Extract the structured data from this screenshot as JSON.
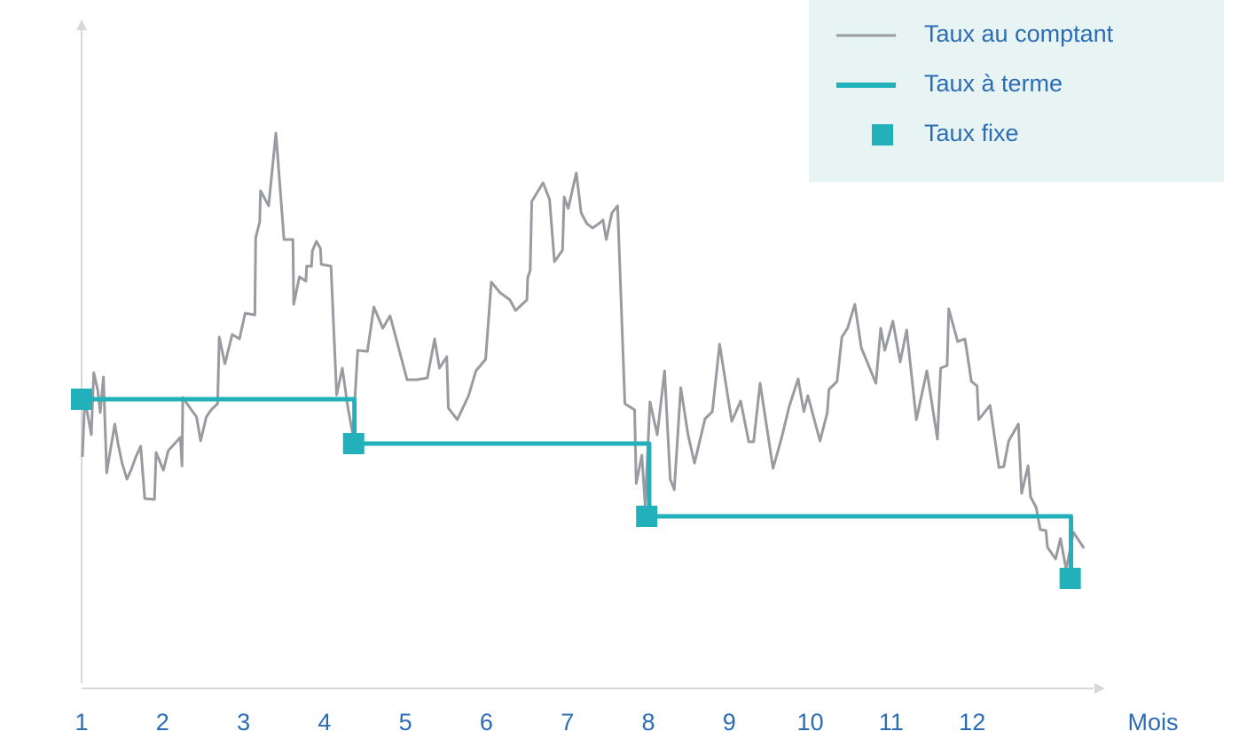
{
  "chart_data": {
    "type": "line",
    "xlabel": "Mois",
    "xlim": [
      1,
      13.63
    ],
    "xticks": [
      1,
      2,
      3,
      4,
      5,
      6,
      7,
      8,
      9,
      10,
      11,
      12
    ],
    "ylim": [
      0,
      74
    ],
    "legend": "top-right",
    "series": [
      {
        "name": "Taux au comptant",
        "color": "#9a9ba1",
        "mode": "lines",
        "x": [
          1.01,
          1.04,
          1.09,
          1.12,
          1.15,
          1.2,
          1.23,
          1.27,
          1.31,
          1.36,
          1.41,
          1.45,
          1.5,
          1.56,
          1.61,
          1.67,
          1.73,
          1.78,
          1.9,
          1.92,
          2.01,
          2.07,
          2.15,
          2.22,
          2.24,
          2.25,
          2.34,
          2.42,
          2.47,
          2.54,
          2.6,
          2.68,
          2.7,
          2.77,
          2.86,
          2.95,
          3.02,
          3.14,
          3.15,
          3.2,
          3.21,
          3.31,
          3.4,
          3.5,
          3.61,
          3.62,
          3.69,
          3.77,
          3.78,
          3.84,
          3.85,
          3.9,
          3.95,
          3.96,
          4.08,
          4.15,
          4.22,
          4.29,
          4.35,
          4.41,
          4.53,
          4.61,
          4.72,
          4.81,
          5.02,
          5.14,
          5.27,
          5.36,
          5.42,
          5.51,
          5.53,
          5.64,
          5.78,
          5.87,
          5.99,
          6.06,
          6.17,
          6.29,
          6.36,
          6.5,
          6.51,
          6.54,
          6.56,
          6.7,
          6.78,
          6.84,
          6.94,
          6.96,
          7.01,
          7.11,
          7.17,
          7.24,
          7.31,
          7.39,
          7.44,
          7.48,
          7.55,
          7.62,
          7.71,
          7.83,
          7.85,
          7.92,
          7.96,
          8.02,
          8.11,
          8.2,
          8.27,
          8.32,
          8.4,
          8.49,
          8.57,
          8.7,
          8.79,
          8.88,
          9.03,
          9.14,
          9.24,
          9.3,
          9.38,
          9.54,
          9.65,
          9.74,
          9.85,
          9.92,
          9.97,
          10.12,
          10.21,
          10.23,
          10.33,
          10.39,
          10.46,
          10.55,
          10.63,
          10.81,
          10.87,
          10.92,
          11.02,
          11.11,
          11.19,
          11.31,
          11.44,
          11.57,
          11.61,
          11.69,
          11.71,
          11.82,
          11.91,
          11.99,
          12.06,
          12.08,
          12.22,
          12.33,
          12.39,
          12.45,
          12.57,
          12.61,
          12.69,
          12.72,
          12.79,
          12.84,
          12.91,
          12.93,
          13.03,
          13.09,
          13.16,
          13.25,
          13.38
        ],
        "values": [
          25.5,
          32.0,
          29.5,
          28.0,
          35.0,
          33.0,
          30.5,
          34.5,
          23.7,
          26.5,
          29.2,
          27.0,
          24.8,
          23.0,
          24.0,
          25.5,
          26.7,
          20.8,
          20.7,
          26.0,
          24.0,
          26.2,
          27.0,
          27.7,
          24.5,
          32.2,
          31.0,
          30.0,
          27.3,
          30.0,
          30.8,
          31.5,
          39.0,
          36.0,
          39.3,
          38.8,
          41.7,
          41.5,
          50.2,
          52.0,
          55.5,
          53.8,
          62.0,
          50.0,
          50.0,
          42.7,
          45.8,
          45.3,
          47.0,
          47.0,
          48.7,
          49.8,
          49.0,
          47.2,
          47.0,
          32.5,
          35.5,
          31.0,
          28.0,
          37.5,
          37.4,
          42.4,
          40.0,
          41.4,
          34.2,
          34.2,
          34.4,
          38.8,
          35.5,
          36.8,
          31.0,
          29.7,
          32.4,
          35.2,
          36.5,
          45.2,
          44.0,
          43.2,
          42.0,
          43.2,
          45.7,
          46.5,
          54.3,
          56.4,
          54.5,
          47.5,
          48.8,
          54.8,
          53.5,
          57.5,
          53.0,
          51.8,
          51.3,
          51.8,
          52.2,
          50.0,
          53.0,
          53.8,
          31.5,
          30.8,
          22.5,
          25.7,
          20.0,
          31.7,
          28.0,
          35.2,
          23.0,
          21.8,
          33.3,
          28.0,
          24.8,
          29.8,
          30.6,
          38.2,
          29.5,
          31.8,
          27.2,
          27.2,
          33.8,
          24.2,
          27.8,
          31.2,
          34.3,
          30.6,
          32.4,
          27.3,
          30.5,
          33.1,
          34.0,
          39.0,
          40.0,
          42.7,
          37.8,
          33.8,
          40.0,
          37.5,
          40.8,
          36.2,
          39.8,
          29.7,
          35.2,
          27.5,
          35.5,
          35.8,
          42.2,
          38.5,
          38.8,
          34.0,
          33.5,
          29.7,
          31.3,
          24.3,
          24.4,
          27.3,
          29.2,
          21.4,
          24.5,
          21.0,
          19.8,
          17.3,
          17.2,
          15.3,
          14.0,
          16.3,
          12.8,
          17.0,
          15.2
        ]
      },
      {
        "name": "Taux à terme",
        "color": "#22b0bb",
        "mode": "lines",
        "x": [
          1,
          4.37,
          4.37,
          8.01,
          8.01,
          13.22,
          13.22
        ],
        "values": [
          32.0,
          32.0,
          27.0,
          27.0,
          18.8,
          18.8,
          11.8
        ]
      },
      {
        "name": "Taux fixe",
        "color": "#22b0bb",
        "mode": "markers",
        "x": [
          1.0,
          4.36,
          7.98,
          13.21
        ],
        "values": [
          32.0,
          27.0,
          18.8,
          11.8
        ]
      }
    ]
  }
}
